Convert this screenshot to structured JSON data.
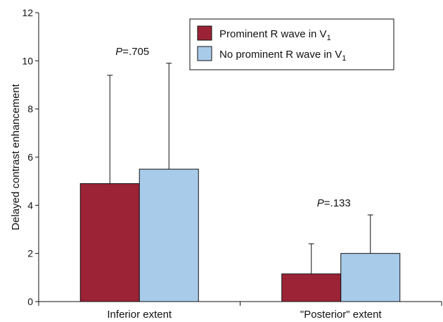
{
  "chart_data": {
    "type": "bar",
    "ylabel": "Delayed contrast enhancement",
    "ylim": [
      0,
      12
    ],
    "yticks": [
      0,
      2,
      4,
      6,
      8,
      10,
      12
    ],
    "grid": false,
    "legend_position": "top-right",
    "categories": [
      "Inferior extent",
      "\"Posterior\" extent"
    ],
    "series": [
      {
        "name": "Prominent R wave in V",
        "name_subscript": "1",
        "color": "#9b2335",
        "values": [
          4.9,
          1.15
        ],
        "error": [
          4.5,
          1.25
        ]
      },
      {
        "name": "No prominent R wave in V",
        "name_subscript": "1",
        "color": "#a9cbea",
        "values": [
          5.5,
          2.0
        ],
        "error": [
          4.4,
          1.6
        ]
      }
    ],
    "annotations": [
      {
        "category": 0,
        "prefix": "P",
        "text": "=.705"
      },
      {
        "category": 1,
        "prefix": "P",
        "text": "=.133"
      }
    ]
  }
}
